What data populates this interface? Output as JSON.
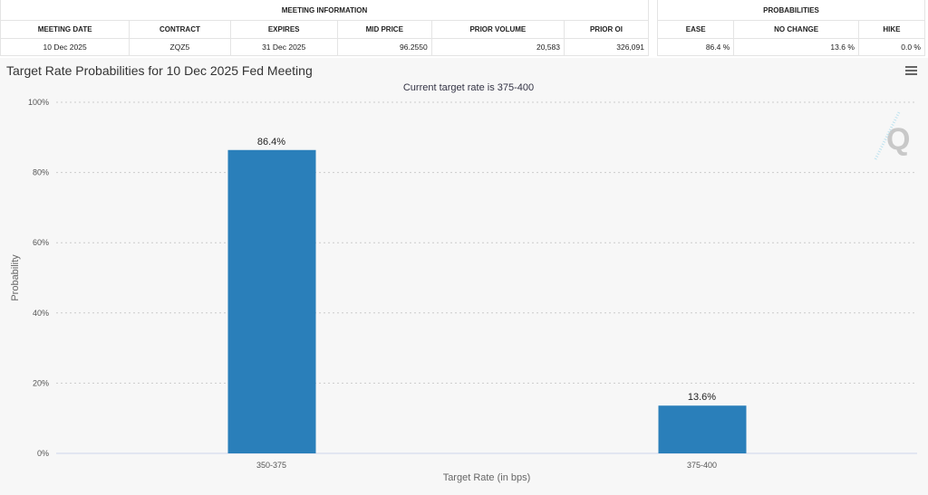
{
  "table": {
    "meeting_group": "MEETING INFORMATION",
    "prob_group": "PROBABILITIES",
    "meeting_headers": [
      "MEETING DATE",
      "CONTRACT",
      "EXPIRES",
      "MID PRICE",
      "PRIOR VOLUME",
      "PRIOR OI"
    ],
    "meeting_values": [
      "10 Dec 2025",
      "ZQZ5",
      "31 Dec 2025",
      "96.2550",
      "20,583",
      "326,091"
    ],
    "prob_headers": [
      "EASE",
      "NO CHANGE",
      "HIKE"
    ],
    "prob_values": [
      "86.4 %",
      "13.6 %",
      "0.0 %"
    ]
  },
  "chart_data": {
    "type": "bar",
    "title": "Target Rate Probabilities for 10 Dec 2025 Fed Meeting",
    "subtitle": "Current target rate is 375-400",
    "xlabel": "Target Rate (in bps)",
    "ylabel": "Probability",
    "categories": [
      "350-375",
      "375-400"
    ],
    "values": [
      86.4,
      13.6
    ],
    "data_labels": [
      "86.4%",
      "13.6%"
    ],
    "ylim": [
      0,
      100
    ],
    "yticks": [
      "0%",
      "20%",
      "40%",
      "60%",
      "80%",
      "100%"
    ],
    "grid": true,
    "bar_color": "#2a7fba"
  },
  "icons": {
    "menu": "hamburger-menu-icon",
    "watermark": "q-logo-watermark"
  }
}
